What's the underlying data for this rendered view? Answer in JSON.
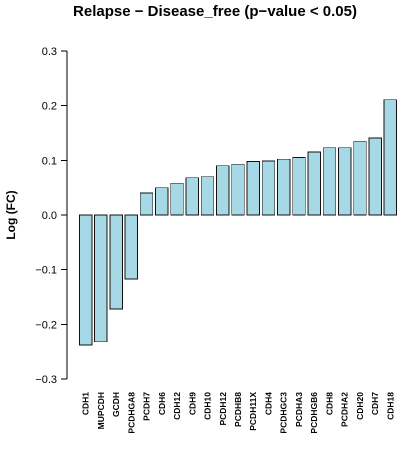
{
  "chart_data": {
    "type": "bar",
    "title": "Relapse − Disease_free (p−value < 0.05)",
    "xlabel": "",
    "ylabel": "Log (FC)",
    "ylim": [
      -0.3,
      0.3
    ],
    "yticks": [
      -0.3,
      -0.2,
      -0.1,
      0.0,
      0.1,
      0.2,
      0.3
    ],
    "ytick_labels": [
      "−0.3",
      "−0.2",
      "−0.1",
      "0.0",
      "0.1",
      "0.2",
      "0.3"
    ],
    "categories": [
      "CDH1",
      "MUPCDH",
      "GCDH",
      "PCDHGA8",
      "PCDH7",
      "CDH6",
      "CDH12",
      "CDH9",
      "CDH10",
      "PCDH12",
      "PCDHB8",
      "PCDH11X",
      "CDH4",
      "PCDHGC3",
      "PCDHA3",
      "PCDHGB6",
      "CDH8",
      "PCDHA2",
      "CDH20",
      "CDH7",
      "CDH18"
    ],
    "values": [
      -0.238,
      -0.232,
      -0.172,
      -0.117,
      0.04,
      0.05,
      0.058,
      0.068,
      0.07,
      0.09,
      0.093,
      0.098,
      0.099,
      0.102,
      0.105,
      0.115,
      0.123,
      0.123,
      0.135,
      0.141,
      0.211
    ],
    "bar_color": "#a6d9e5",
    "bar_edge_color": "#111111",
    "grid": false,
    "legend": "none"
  }
}
